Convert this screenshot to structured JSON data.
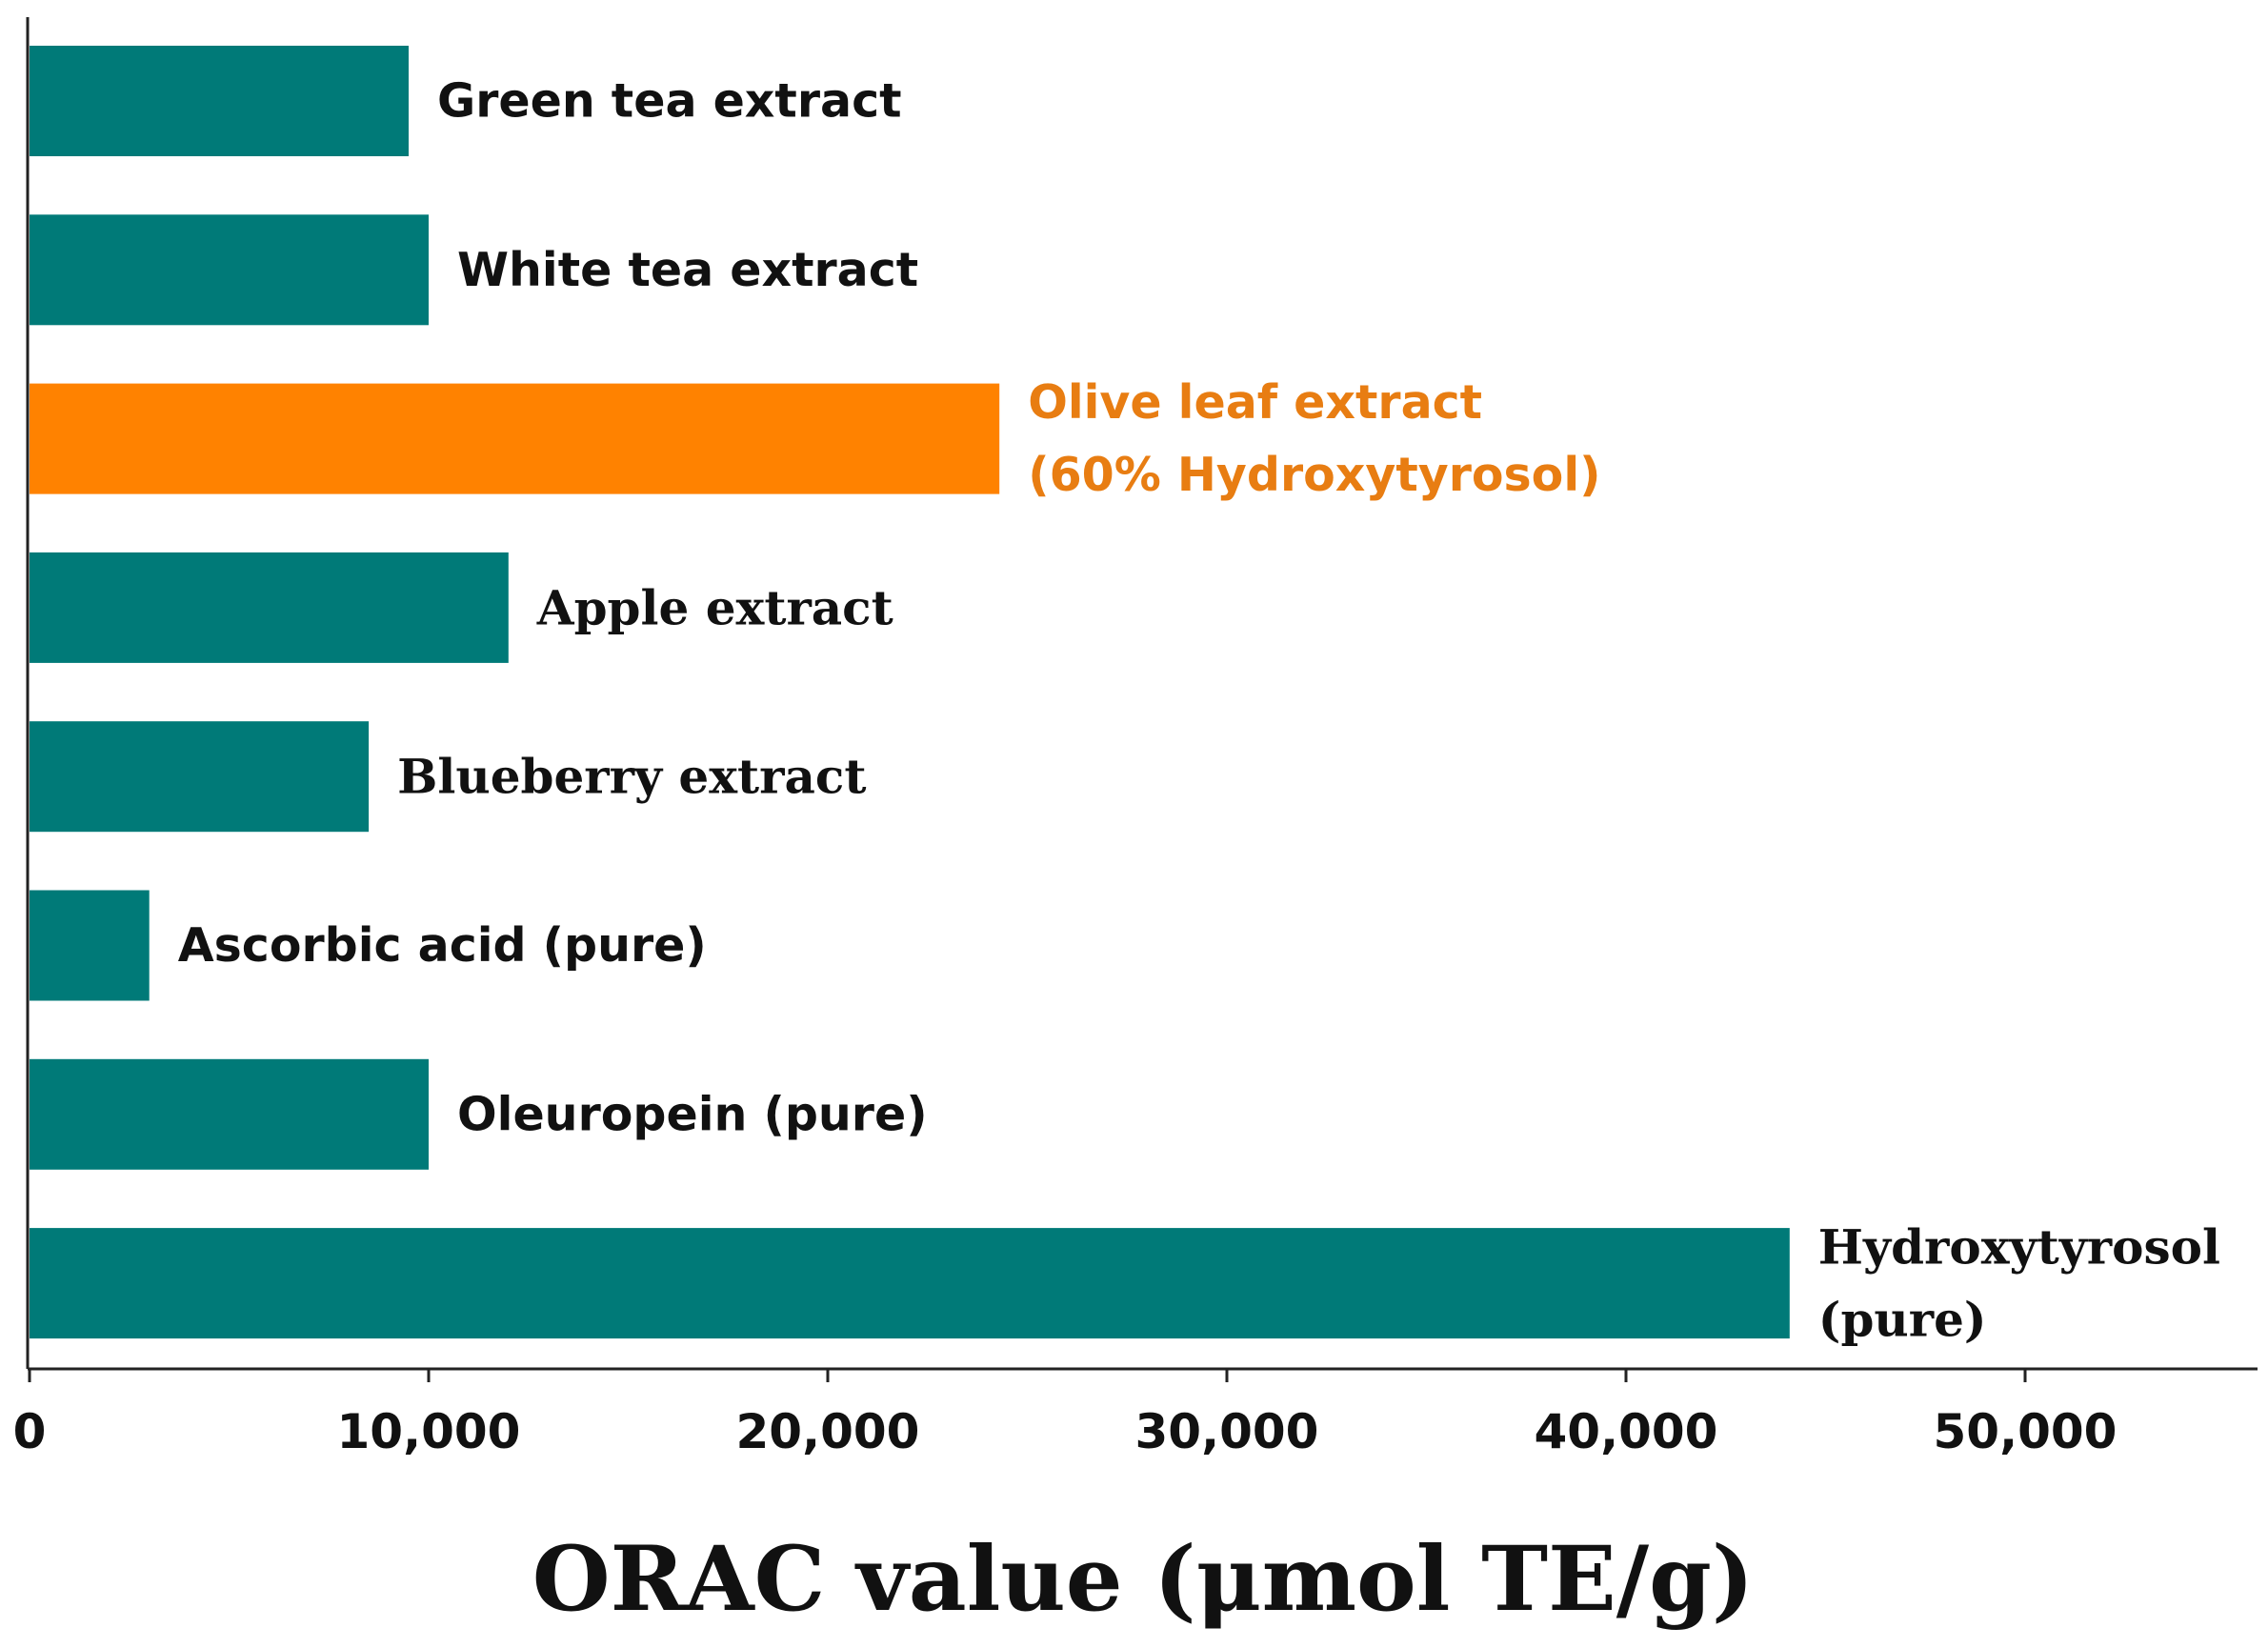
{
  "chart_data": {
    "type": "bar",
    "orientation": "horizontal",
    "title": "",
    "xlabel": "ORAC value (μmol TE/g)",
    "ylabel": "",
    "xlim": [
      0,
      56000
    ],
    "x_ticks": [
      0,
      10000,
      20000,
      30000,
      40000,
      50000
    ],
    "x_tick_labels": [
      "0",
      "10,000",
      "20,000",
      "30,000",
      "40,000",
      "50,000"
    ],
    "grid": false,
    "legend": "none",
    "colors": {
      "default_bar": "#007a78",
      "highlight_bar": "#ff8200",
      "highlight_label": "#e87d12",
      "label": "#111111",
      "axis": "#222222"
    },
    "categories": [
      "Green tea extract",
      "White tea extract",
      "Olive leaf extract (60% Hydroxytyrosol)",
      "Apple extract",
      "Blueberry extract",
      "Ascorbic acid (pure)",
      "Oleuropein (pure)",
      "Hydroxytyrosol (pure)"
    ],
    "values": [
      9500,
      10000,
      24300,
      12000,
      8500,
      3000,
      10000,
      44100
    ],
    "bars": [
      {
        "label_lines": [
          "Green tea extract"
        ],
        "value": 9500,
        "highlight": false,
        "label_font": "sans"
      },
      {
        "label_lines": [
          "White tea extract"
        ],
        "value": 10000,
        "highlight": false,
        "label_font": "sans"
      },
      {
        "label_lines": [
          "Olive leaf extract",
          "(60% Hydroxytyrosol)"
        ],
        "value": 24300,
        "highlight": true,
        "label_font": "sans"
      },
      {
        "label_lines": [
          "Apple extract"
        ],
        "value": 12000,
        "highlight": false,
        "label_font": "serif"
      },
      {
        "label_lines": [
          "Blueberry extract"
        ],
        "value": 8500,
        "highlight": false,
        "label_font": "serif"
      },
      {
        "label_lines": [
          "Ascorbic acid (pure)"
        ],
        "value": 3000,
        "highlight": false,
        "label_font": "sans"
      },
      {
        "label_lines": [
          "Oleuropein (pure)"
        ],
        "value": 10000,
        "highlight": false,
        "label_font": "sans"
      },
      {
        "label_lines": [
          "Hydroxytyrosol",
          "(pure)"
        ],
        "value": 44100,
        "highlight": false,
        "label_font": "serif"
      }
    ]
  }
}
